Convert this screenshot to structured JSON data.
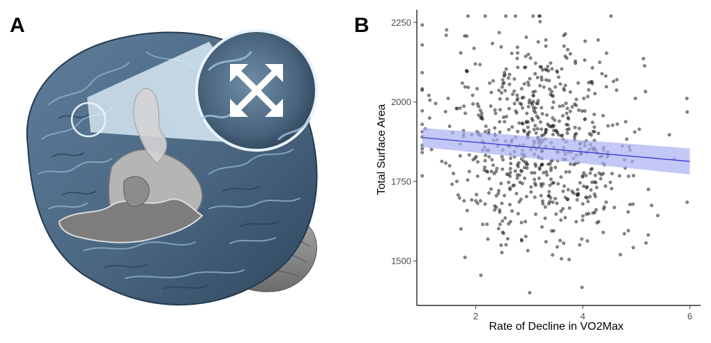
{
  "panels": {
    "a_label": "A",
    "b_label": "B"
  },
  "illustration": {
    "subject": "brain-cortical-surface-expansion",
    "icon": "expand-arrows-icon",
    "colors": {
      "cortex": "#4e6a85",
      "cortex_light": "#9fc3dc",
      "cerebellum": "#8a8a8a",
      "section": "#9a9a9a",
      "glow": "#d9ecf7"
    }
  },
  "chart_data": {
    "type": "scatter",
    "title": "",
    "xlabel": "Rate of Decline in VO2Max",
    "ylabel": "Total Surface Area",
    "xlim": [
      0.9,
      6.2
    ],
    "ylim": [
      1360,
      2290
    ],
    "x_ticks": [
      2,
      4,
      6
    ],
    "y_ticks": [
      1500,
      1750,
      2000,
      2250
    ],
    "grid": false,
    "legend": "none",
    "point_count": 700,
    "regression": {
      "x": [
        1.0,
        6.0
      ],
      "y": [
        1888,
        1813
      ],
      "ci_lower": [
        1858,
        1772
      ],
      "ci_upper": [
        1918,
        1854
      ]
    },
    "colors": {
      "points": "#262626",
      "line": "#2b2bd6",
      "band": "#aab0f2",
      "axis": "#000000"
    }
  }
}
